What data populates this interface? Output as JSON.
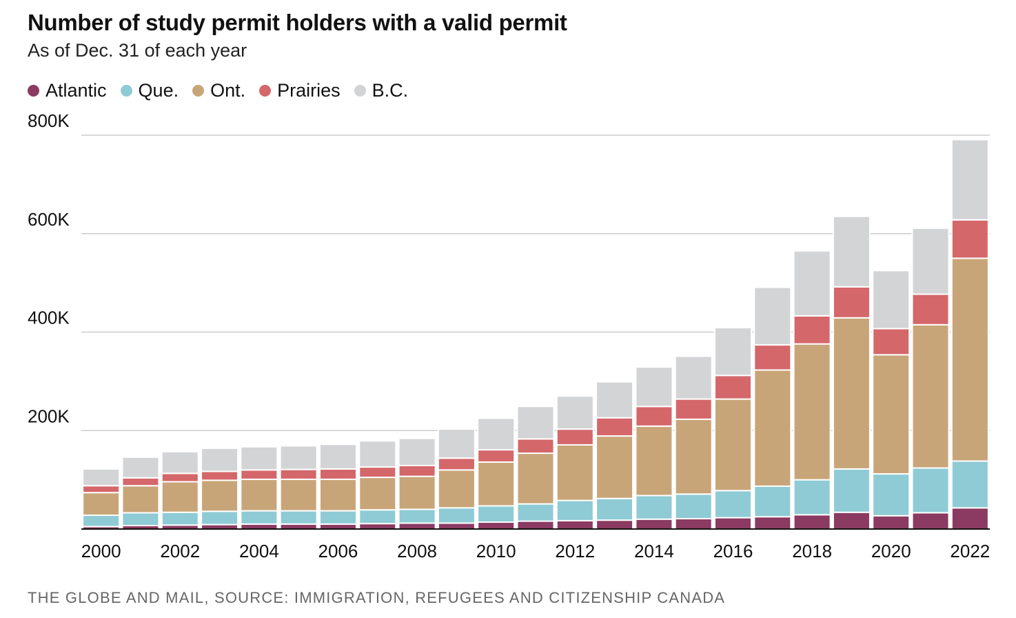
{
  "header": {
    "title": "Number of study permit holders with a valid permit",
    "subtitle": "As of Dec. 31 of each year"
  },
  "legend": [
    {
      "label": "Atlantic",
      "color": "#8b3a62"
    },
    {
      "label": "Que.",
      "color": "#8ecbd5"
    },
    {
      "label": "Ont.",
      "color": "#c8a578"
    },
    {
      "label": "Prairies",
      "color": "#d4676a"
    },
    {
      "label": "B.C.",
      "color": "#d3d4d6"
    }
  ],
  "footer": {
    "source": "THE GLOBE AND MAIL, SOURCE: IMMIGRATION, REFUGEES AND CITIZENSHIP CANADA"
  },
  "chart_data": {
    "type": "bar",
    "stacked": true,
    "categories": [
      "2000",
      "2001",
      "2002",
      "2003",
      "2004",
      "2005",
      "2006",
      "2007",
      "2008",
      "2009",
      "2010",
      "2011",
      "2012",
      "2013",
      "2014",
      "2015",
      "2016",
      "2017",
      "2018",
      "2019",
      "2020",
      "2021",
      "2022"
    ],
    "x_tick_labels": [
      "2000",
      "2002",
      "2004",
      "2006",
      "2008",
      "2010",
      "2012",
      "2014",
      "2016",
      "2018",
      "2020",
      "2022"
    ],
    "y_ticks": [
      {
        "value": 200000,
        "label": "200K"
      },
      {
        "value": 400000,
        "label": "400K"
      },
      {
        "value": 600000,
        "label": "600K"
      },
      {
        "value": 800000,
        "label": "800K"
      }
    ],
    "ylim": [
      0,
      800000
    ],
    "grid": true,
    "legend_position": "top-left",
    "series": [
      {
        "name": "Atlantic",
        "color": "#8b3a62",
        "values": [
          5000,
          7000,
          8000,
          9000,
          10000,
          10000,
          10000,
          11000,
          12000,
          12000,
          14000,
          16000,
          17000,
          18000,
          20000,
          21000,
          23000,
          25000,
          29000,
          34000,
          27000,
          33000,
          43000
        ]
      },
      {
        "name": "Que.",
        "color": "#8ecbd5",
        "values": [
          23000,
          26000,
          26000,
          27000,
          27000,
          27000,
          27000,
          28000,
          28000,
          31000,
          33000,
          35000,
          41000,
          44000,
          48000,
          50000,
          55000,
          62000,
          71000,
          88000,
          85000,
          91000,
          95000
        ]
      },
      {
        "name": "Ont.",
        "color": "#c8a578",
        "values": [
          46000,
          55000,
          62000,
          63000,
          64000,
          64000,
          64000,
          66000,
          67000,
          77000,
          89000,
          103000,
          113000,
          127000,
          141000,
          152000,
          186000,
          236000,
          276000,
          307000,
          242000,
          291000,
          412000
        ]
      },
      {
        "name": "Prairies",
        "color": "#d4676a",
        "values": [
          14000,
          16000,
          17000,
          18000,
          19000,
          20000,
          21000,
          21000,
          22000,
          24000,
          25000,
          29000,
          32000,
          37000,
          40000,
          41000,
          48000,
          51000,
          57000,
          63000,
          53000,
          62000,
          78000
        ]
      },
      {
        "name": "B.C.",
        "color": "#d3d4d6",
        "values": [
          34000,
          42000,
          44000,
          47000,
          47000,
          48000,
          50000,
          53000,
          55000,
          59000,
          64000,
          66000,
          67000,
          73000,
          80000,
          87000,
          97000,
          117000,
          132000,
          143000,
          118000,
          134000,
          163000
        ]
      }
    ]
  }
}
